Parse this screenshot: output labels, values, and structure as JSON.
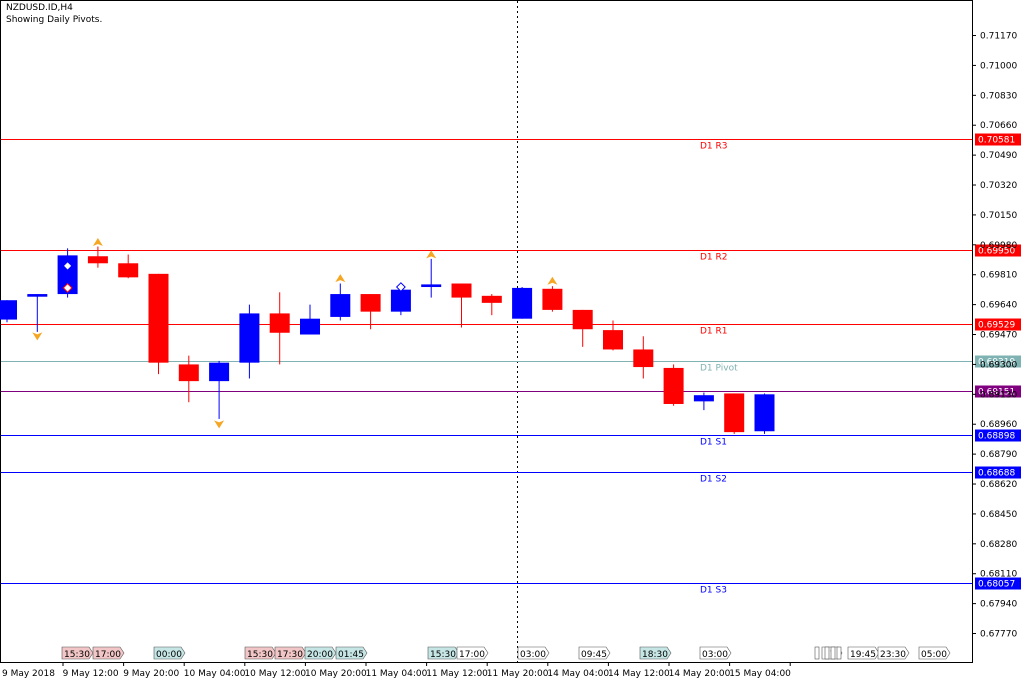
{
  "header": {
    "symbol": "NZDUSD.ID,H4",
    "subtitle": "Showing Daily Pivots."
  },
  "colors": {
    "bull": "#0000ff",
    "bear": "#ff0000",
    "resistance": "#ff0000",
    "support": "#0000ff",
    "pivot": "#7fb2b2",
    "purple": "#800080",
    "fractal": "#f5a623"
  },
  "chart_data": {
    "type": "candlestick",
    "timeframe": "H4",
    "ylim": [
      0.6765,
      0.7122
    ],
    "y_ticks": [
      "0.71170",
      "0.71000",
      "0.70830",
      "0.70660",
      "0.70490",
      "0.70320",
      "0.70150",
      "0.69980",
      "0.69810",
      "0.69640",
      "0.69470",
      "0.69300",
      "0.69130",
      "0.68960",
      "0.68790",
      "0.68620",
      "0.68450",
      "0.68280",
      "0.68110",
      "0.67940",
      "0.67770"
    ],
    "x_labels": [
      "9 May 2018",
      "9 May 12:00",
      "9 May 20:00",
      "10 May 04:00",
      "10 May 12:00",
      "10 May 20:00",
      "11 May 04:00",
      "11 May 12:00",
      "11 May 20:00",
      "14 May 04:00",
      "14 May 12:00",
      "14 May 20:00",
      "15 May 04:00"
    ],
    "candles": [
      {
        "o": 0.69555,
        "h": 0.69665,
        "l": 0.6954,
        "c": 0.69665
      },
      {
        "o": 0.69685,
        "h": 0.697,
        "l": 0.69485,
        "c": 0.697
      },
      {
        "o": 0.697,
        "h": 0.6996,
        "l": 0.6968,
        "c": 0.6992
      },
      {
        "o": 0.69915,
        "h": 0.6997,
        "l": 0.6985,
        "c": 0.69875
      },
      {
        "o": 0.69875,
        "h": 0.69925,
        "l": 0.6979,
        "c": 0.69795
      },
      {
        "o": 0.69815,
        "h": 0.69815,
        "l": 0.69245,
        "c": 0.6931
      },
      {
        "o": 0.693,
        "h": 0.6935,
        "l": 0.69085,
        "c": 0.69205
      },
      {
        "o": 0.69205,
        "h": 0.6932,
        "l": 0.6899,
        "c": 0.6931
      },
      {
        "o": 0.6931,
        "h": 0.6964,
        "l": 0.6922,
        "c": 0.6959
      },
      {
        "o": 0.6959,
        "h": 0.6971,
        "l": 0.693,
        "c": 0.6948
      },
      {
        "o": 0.6947,
        "h": 0.6964,
        "l": 0.6947,
        "c": 0.6956
      },
      {
        "o": 0.6957,
        "h": 0.6976,
        "l": 0.6955,
        "c": 0.697
      },
      {
        "o": 0.697,
        "h": 0.697,
        "l": 0.695,
        "c": 0.696
      },
      {
        "o": 0.696,
        "h": 0.6975,
        "l": 0.6958,
        "c": 0.69725
      },
      {
        "o": 0.6974,
        "h": 0.699,
        "l": 0.6968,
        "c": 0.69755
      },
      {
        "o": 0.6976,
        "h": 0.6976,
        "l": 0.6951,
        "c": 0.6968
      },
      {
        "o": 0.6969,
        "h": 0.697,
        "l": 0.6958,
        "c": 0.6965
      },
      {
        "o": 0.6956,
        "h": 0.6974,
        "l": 0.6956,
        "c": 0.69735
      },
      {
        "o": 0.6973,
        "h": 0.69745,
        "l": 0.696,
        "c": 0.6961
      },
      {
        "o": 0.6961,
        "h": 0.6961,
        "l": 0.694,
        "c": 0.695
      },
      {
        "o": 0.69495,
        "h": 0.6955,
        "l": 0.6938,
        "c": 0.69385
      },
      {
        "o": 0.69385,
        "h": 0.6946,
        "l": 0.6922,
        "c": 0.69285
      },
      {
        "o": 0.6928,
        "h": 0.693,
        "l": 0.69065,
        "c": 0.69075
      },
      {
        "o": 0.6909,
        "h": 0.6914,
        "l": 0.6904,
        "c": 0.69125
      },
      {
        "o": 0.69135,
        "h": 0.69135,
        "l": 0.68905,
        "c": 0.68915
      },
      {
        "o": 0.6892,
        "h": 0.69135,
        "l": 0.68905,
        "c": 0.6913
      }
    ],
    "fractals": [
      {
        "i": 1,
        "dir": "down",
        "y": 0.69465
      },
      {
        "i": 3,
        "dir": "up",
        "y": 0.6999
      },
      {
        "i": 7,
        "dir": "down",
        "y": 0.68965
      },
      {
        "i": 11,
        "dir": "up",
        "y": 0.69785
      },
      {
        "i": 14,
        "dir": "up",
        "y": 0.6992
      },
      {
        "i": 18,
        "dir": "up",
        "y": 0.6977
      }
    ],
    "pivots": [
      {
        "name": "D1 R3",
        "value": 0.70581,
        "tag": "0.70581",
        "color": "#ff0000"
      },
      {
        "name": "D1 R2",
        "value": 0.6995,
        "tag": "0.69950",
        "color": "#ff0000"
      },
      {
        "name": "D1 R1",
        "value": 0.69529,
        "tag": "0.69529",
        "color": "#ff0000"
      },
      {
        "name": "D1 Pivot",
        "value": 0.69319,
        "tag": "0.69319",
        "color": "#7fb2b2"
      },
      {
        "name": "",
        "value": 0.69151,
        "tag": "0.69151",
        "color": "#800080"
      },
      {
        "name": "D1 S1",
        "value": 0.68898,
        "tag": "0.68898",
        "color": "#0000ff"
      },
      {
        "name": "D1 S2",
        "value": 0.68688,
        "tag": "0.68688",
        "color": "#0000ff"
      },
      {
        "name": "D1 S3",
        "value": 0.68057,
        "tag": "0.68057",
        "color": "#0000ff"
      }
    ],
    "session_markers": [
      {
        "label": "15:30",
        "kind": "red"
      },
      {
        "label": "17:00",
        "kind": "red"
      },
      {
        "label": "00:00",
        "kind": "teal"
      },
      {
        "label": "15:30",
        "kind": "red"
      },
      {
        "label": "17:30",
        "kind": "red"
      },
      {
        "label": "20:00",
        "kind": "teal"
      },
      {
        "label": "01:45",
        "kind": "teal"
      },
      {
        "label": "15:30",
        "kind": "teal"
      },
      {
        "label": "17:00",
        "kind": "plain"
      },
      {
        "label": "03:00",
        "kind": "plain"
      },
      {
        "label": "09:45",
        "kind": "plain"
      },
      {
        "label": "18:30",
        "kind": "teal"
      },
      {
        "label": "03:00",
        "kind": "plain"
      },
      {
        "label": "17",
        "kind": "plain"
      },
      {
        "label": "19:45",
        "kind": "plain"
      },
      {
        "label": "23:30",
        "kind": "plain"
      },
      {
        "label": "05:00",
        "kind": "plain"
      }
    ]
  }
}
